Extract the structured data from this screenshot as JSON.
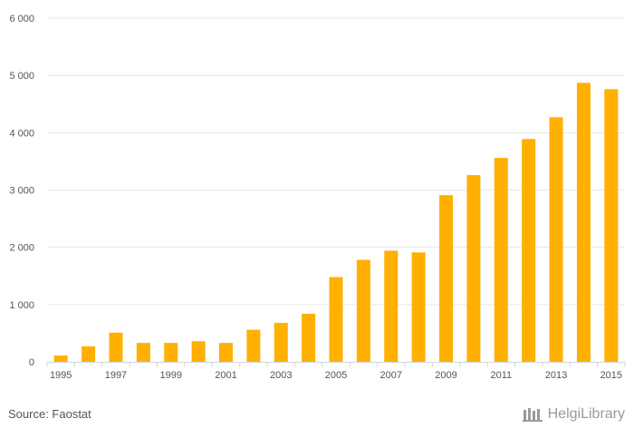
{
  "chart_data": {
    "type": "bar",
    "categories": [
      "1995",
      "1996",
      "1997",
      "1998",
      "1999",
      "2000",
      "2001",
      "2002",
      "2003",
      "2004",
      "2005",
      "2006",
      "2007",
      "2008",
      "2009",
      "2010",
      "2011",
      "2012",
      "2013",
      "2014",
      "2015"
    ],
    "x_tick_labels": [
      "1995",
      "",
      "1997",
      "",
      "1999",
      "",
      "2001",
      "",
      "2003",
      "",
      "2005",
      "",
      "2007",
      "",
      "2009",
      "",
      "2011",
      "",
      "2013",
      "",
      "2015"
    ],
    "values": [
      110,
      270,
      510,
      330,
      330,
      360,
      330,
      560,
      680,
      840,
      1480,
      1780,
      1940,
      1910,
      2910,
      3260,
      3560,
      3890,
      4270,
      4870,
      4760
    ],
    "ylim": [
      0,
      6000
    ],
    "y_ticks": [
      0,
      1000,
      2000,
      3000,
      4000,
      5000,
      6000
    ],
    "y_tick_labels": [
      "0",
      "1 000",
      "2 000",
      "3 000",
      "4 000",
      "5 000",
      "6 000"
    ],
    "grid": true,
    "bar_color": "#FFB000",
    "title": "",
    "xlabel": "",
    "ylabel": ""
  },
  "footer": {
    "source": "Source: Faostat",
    "logo_text": "HelgiLibrary"
  },
  "logo_icon": "helgilibrary-logo-icon"
}
